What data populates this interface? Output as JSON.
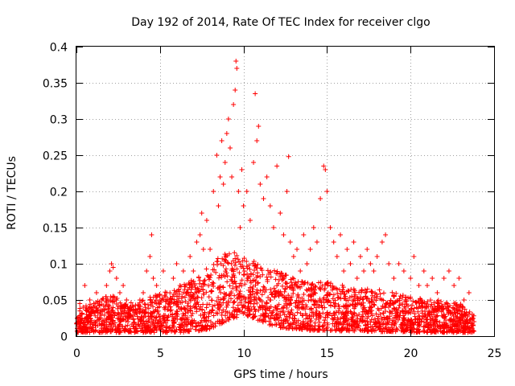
{
  "chart_data": {
    "type": "scatter",
    "title": "Day 192 of 2014, Rate Of TEC Index for receiver clgo",
    "xlabel": "GPS time / hours",
    "ylabel": "ROTI / TECUs",
    "xlim": [
      0,
      25
    ],
    "ylim": [
      0,
      0.4
    ],
    "x_ticks": [
      0,
      5,
      10,
      15,
      20,
      25
    ],
    "x_tick_labels": [
      "0",
      "5",
      "10",
      "15",
      "20",
      "25"
    ],
    "y_ticks": [
      0,
      0.05,
      0.1,
      0.15,
      0.2,
      0.25,
      0.3,
      0.35,
      0.4
    ],
    "y_tick_labels": [
      "0",
      "0.05",
      "0.1",
      "0.15",
      "0.2",
      "0.25",
      "0.3",
      "0.35",
      "0.4"
    ],
    "grid": true,
    "marker": "+",
    "series": [
      {
        "name": "ROTI",
        "color": "#ff0000",
        "points": [
          [
            0.1,
            0.02
          ],
          [
            0.2,
            0.045
          ],
          [
            0.3,
            0.03
          ],
          [
            0.4,
            0.04
          ],
          [
            0.5,
            0.07
          ],
          [
            0.6,
            0.03
          ],
          [
            0.8,
            0.05
          ],
          [
            1.0,
            0.04
          ],
          [
            1.2,
            0.06
          ],
          [
            1.5,
            0.05
          ],
          [
            1.8,
            0.07
          ],
          [
            2.0,
            0.09
          ],
          [
            2.1,
            0.1
          ],
          [
            2.2,
            0.095
          ],
          [
            2.4,
            0.08
          ],
          [
            2.6,
            0.06
          ],
          [
            2.8,
            0.07
          ],
          [
            3.0,
            0.05
          ],
          [
            3.2,
            0.04
          ],
          [
            3.5,
            0.03
          ],
          [
            3.8,
            0.05
          ],
          [
            4.0,
            0.06
          ],
          [
            4.2,
            0.09
          ],
          [
            4.4,
            0.11
          ],
          [
            4.5,
            0.14
          ],
          [
            4.6,
            0.08
          ],
          [
            4.8,
            0.07
          ],
          [
            5.0,
            0.05
          ],
          [
            5.2,
            0.09
          ],
          [
            5.4,
            0.06
          ],
          [
            5.6,
            0.05
          ],
          [
            5.8,
            0.08
          ],
          [
            6.0,
            0.1
          ],
          [
            6.2,
            0.07
          ],
          [
            6.4,
            0.09
          ],
          [
            6.6,
            0.06
          ],
          [
            6.8,
            0.11
          ],
          [
            7.0,
            0.09
          ],
          [
            7.2,
            0.13
          ],
          [
            7.4,
            0.14
          ],
          [
            7.5,
            0.17
          ],
          [
            7.6,
            0.12
          ],
          [
            7.8,
            0.16
          ],
          [
            8.0,
            0.12
          ],
          [
            8.2,
            0.2
          ],
          [
            8.4,
            0.25
          ],
          [
            8.5,
            0.18
          ],
          [
            8.6,
            0.22
          ],
          [
            8.7,
            0.27
          ],
          [
            8.8,
            0.21
          ],
          [
            8.9,
            0.24
          ],
          [
            9.0,
            0.28
          ],
          [
            9.1,
            0.3
          ],
          [
            9.2,
            0.26
          ],
          [
            9.3,
            0.22
          ],
          [
            9.4,
            0.32
          ],
          [
            9.5,
            0.34
          ],
          [
            9.55,
            0.38
          ],
          [
            9.6,
            0.37
          ],
          [
            9.7,
            0.2
          ],
          [
            9.8,
            0.15
          ],
          [
            9.9,
            0.23
          ],
          [
            10.0,
            0.18
          ],
          [
            10.2,
            0.2
          ],
          [
            10.4,
            0.16
          ],
          [
            10.6,
            0.24
          ],
          [
            10.7,
            0.335
          ],
          [
            10.8,
            0.27
          ],
          [
            10.9,
            0.29
          ],
          [
            11.0,
            0.21
          ],
          [
            11.2,
            0.19
          ],
          [
            11.4,
            0.22
          ],
          [
            11.6,
            0.18
          ],
          [
            11.8,
            0.15
          ],
          [
            12.0,
            0.235
          ],
          [
            12.2,
            0.17
          ],
          [
            12.4,
            0.14
          ],
          [
            12.6,
            0.2
          ],
          [
            12.7,
            0.248
          ],
          [
            12.8,
            0.13
          ],
          [
            13.0,
            0.11
          ],
          [
            13.2,
            0.12
          ],
          [
            13.4,
            0.09
          ],
          [
            13.6,
            0.14
          ],
          [
            13.8,
            0.1
          ],
          [
            14.0,
            0.12
          ],
          [
            14.2,
            0.15
          ],
          [
            14.4,
            0.13
          ],
          [
            14.6,
            0.19
          ],
          [
            14.8,
            0.235
          ],
          [
            14.9,
            0.23
          ],
          [
            15.0,
            0.2
          ],
          [
            15.2,
            0.15
          ],
          [
            15.4,
            0.13
          ],
          [
            15.6,
            0.11
          ],
          [
            15.8,
            0.14
          ],
          [
            16.0,
            0.09
          ],
          [
            16.2,
            0.12
          ],
          [
            16.4,
            0.1
          ],
          [
            16.6,
            0.13
          ],
          [
            16.8,
            0.08
          ],
          [
            17.0,
            0.11
          ],
          [
            17.2,
            0.09
          ],
          [
            17.4,
            0.12
          ],
          [
            17.6,
            0.1
          ],
          [
            17.8,
            0.09
          ],
          [
            18.0,
            0.11
          ],
          [
            18.3,
            0.13
          ],
          [
            18.5,
            0.14
          ],
          [
            18.7,
            0.1
          ],
          [
            19.0,
            0.08
          ],
          [
            19.3,
            0.1
          ],
          [
            19.6,
            0.09
          ],
          [
            20.0,
            0.08
          ],
          [
            20.2,
            0.11
          ],
          [
            20.5,
            0.07
          ],
          [
            20.8,
            0.09
          ],
          [
            21.0,
            0.07
          ],
          [
            21.3,
            0.08
          ],
          [
            21.6,
            0.06
          ],
          [
            22.0,
            0.08
          ],
          [
            22.3,
            0.09
          ],
          [
            22.6,
            0.07
          ],
          [
            22.9,
            0.08
          ],
          [
            23.2,
            0.05
          ],
          [
            23.5,
            0.06
          ],
          [
            23.7,
            0.03
          ],
          [
            23.8,
            0.02
          ]
        ],
        "density_envelope": {
          "x": [
            0,
            1,
            2,
            3,
            4,
            5,
            6,
            7,
            8,
            9,
            10,
            11,
            12,
            13,
            14,
            15,
            16,
            17,
            18,
            19,
            20,
            21,
            22,
            23,
            23.8
          ],
          "low": [
            0.005,
            0.005,
            0.005,
            0.005,
            0.005,
            0.005,
            0.005,
            0.006,
            0.01,
            0.02,
            0.03,
            0.02,
            0.012,
            0.01,
            0.008,
            0.008,
            0.007,
            0.007,
            0.006,
            0.006,
            0.005,
            0.005,
            0.005,
            0.005,
            0.005
          ],
          "high": [
            0.04,
            0.045,
            0.06,
            0.045,
            0.05,
            0.06,
            0.065,
            0.08,
            0.1,
            0.12,
            0.11,
            0.1,
            0.09,
            0.08,
            0.075,
            0.075,
            0.07,
            0.065,
            0.065,
            0.06,
            0.055,
            0.05,
            0.05,
            0.045,
            0.03
          ]
        }
      }
    ]
  }
}
